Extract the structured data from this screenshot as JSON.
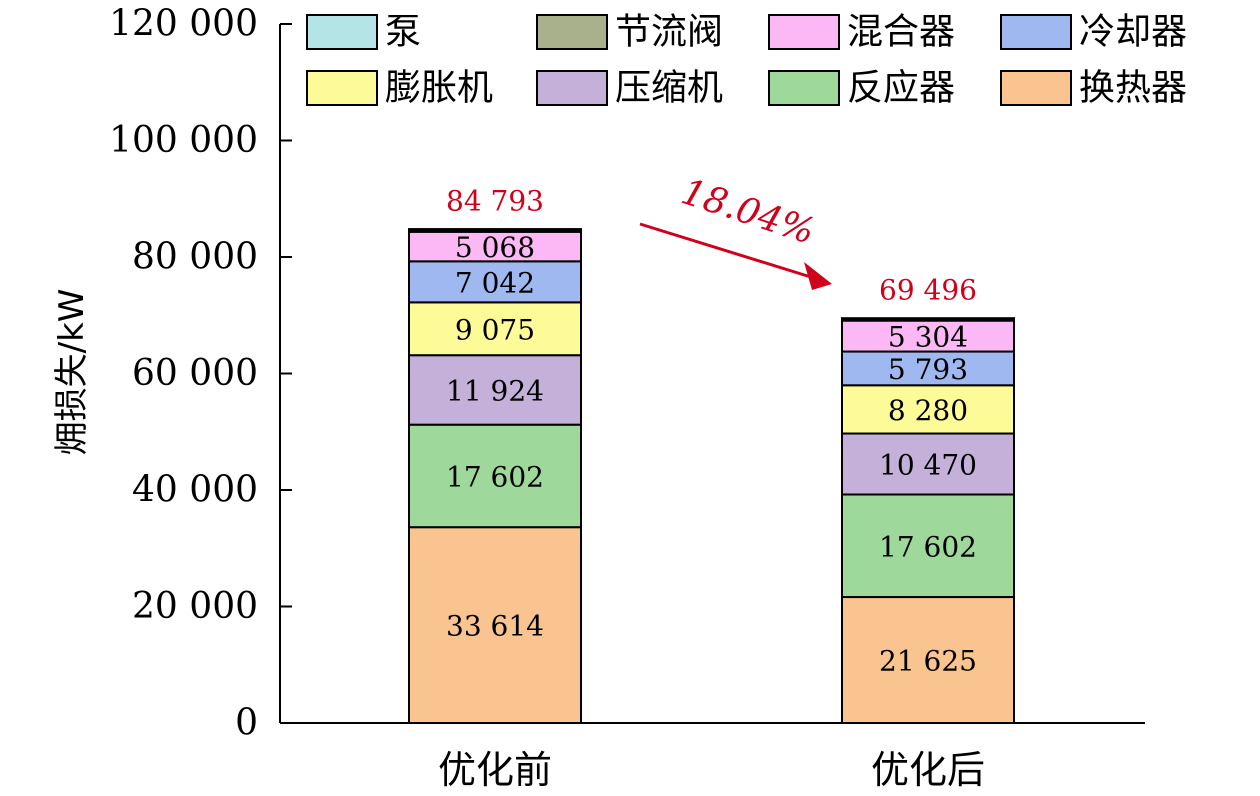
{
  "chart_data": {
    "type": "bar",
    "stacked": true,
    "categories": [
      "优化前",
      "优化后"
    ],
    "ylabel": "㶲损失/kW",
    "ylim": [
      0,
      120000
    ],
    "yticks": [
      0,
      20000,
      40000,
      60000,
      80000,
      100000,
      120000
    ],
    "ytick_labels": [
      "0",
      "20 000",
      "40 000",
      "60 000",
      "80 000",
      "100 000",
      "120 000"
    ],
    "grid": false,
    "legend_position": "top-right",
    "series": [
      {
        "name": "换热器",
        "color": "#f9c490",
        "values": [
          33614,
          21625
        ],
        "labels": [
          "33 614",
          "21 625"
        ]
      },
      {
        "name": "反应器",
        "color": "#9ed89a",
        "values": [
          17602,
          17602
        ],
        "labels": [
          "17 602",
          "17 602"
        ]
      },
      {
        "name": "压缩机",
        "color": "#c4b0d8",
        "values": [
          11924,
          10470
        ],
        "labels": [
          "11 924",
          "10 470"
        ]
      },
      {
        "name": "膨胀机",
        "color": "#fdfb98",
        "values": [
          9075,
          8280
        ],
        "labels": [
          "9 075",
          "8 280"
        ]
      },
      {
        "name": "冷却器",
        "color": "#9fb8f0",
        "values": [
          7042,
          5793
        ],
        "labels": [
          "7 042",
          "5 793"
        ]
      },
      {
        "name": "混合器",
        "color": "#fbb8f4",
        "values": [
          5068,
          5304
        ],
        "labels": [
          "5 068",
          "5 304"
        ]
      },
      {
        "name": "节流阀",
        "color": "#a9b08c",
        "values": [
          300,
          300
        ],
        "labels": [
          "",
          ""
        ]
      },
      {
        "name": "泵",
        "color": "#b4e4e6",
        "values": [
          168,
          122
        ],
        "labels": [
          "",
          ""
        ]
      }
    ],
    "totals": [
      84793,
      69496
    ],
    "total_labels": [
      "84 793",
      "69 496"
    ],
    "annotation": {
      "text": "18.04%",
      "color": "#d0021b"
    },
    "legend_order": [
      "泵",
      "节流阀",
      "混合器",
      "冷却器",
      "膨胀机",
      "压缩机",
      "反应器",
      "换热器"
    ]
  }
}
